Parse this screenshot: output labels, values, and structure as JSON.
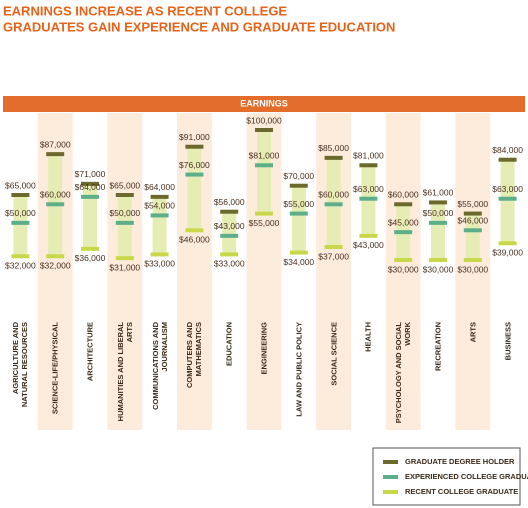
{
  "chart_data": {
    "type": "range",
    "title": [
      "EARNINGS INCREASE AS RECENT COLLEGE",
      "GRADUATES GAIN EXPERIENCE AND GRADUATE EDUCATION"
    ],
    "header": "EARNINGS",
    "categories": [
      "AGRICULTURE AND NATURAL RESOURCES",
      "SCIENCE-LIFE/PHYSICAL",
      "ARCHITECTURE",
      "HUMANITIES AND LIBERAL ARTS",
      "COMMUNICATIONS AND JOURNALISM",
      "COMPUTERS AND MATHEMATICS",
      "EDUCATION",
      "ENGINEERING",
      "LAW AND PUBLIC POLICY",
      "SOCIAL SCIENCE",
      "HEALTH",
      "PSYCHOLOGY AND SOCIAL WORK",
      "RECREATION",
      "ARTS",
      "BUSINESS"
    ],
    "series": [
      {
        "name": "GRADUATE DEGREE HOLDER",
        "color": "#6b6a2c",
        "values": [
          65000,
          87000,
          71000,
          65000,
          64000,
          91000,
          56000,
          100000,
          70000,
          85000,
          81000,
          60000,
          61000,
          55000,
          84000
        ],
        "value_labels": [
          "$65,000",
          "$87,000",
          "$71,000",
          "$65,000",
          "$64,000",
          "$91,000",
          "$56,000",
          "$100,000",
          "$70,000",
          "$85,000",
          "$81,000",
          "$60,000",
          "$61,000",
          "$55,000",
          "$84,000"
        ]
      },
      {
        "name": "EXPERIENCED COLLEGE GRADUATE",
        "color": "#5dae8b",
        "values": [
          50000,
          60000,
          64000,
          50000,
          54000,
          76000,
          43000,
          81000,
          55000,
          60000,
          63000,
          45000,
          50000,
          46000,
          63000
        ],
        "value_labels": [
          "$50,000",
          "$60,000",
          "$64,000",
          "$50,000",
          "$54,000",
          "$76,000",
          "$43,000",
          "$81,000",
          "$55,000",
          "$60,000",
          "$63,000",
          "$45,000",
          "$50,000",
          "$46,000",
          "$63,000"
        ]
      },
      {
        "name": "RECENT COLLEGE GRADUATE",
        "color": "#c9d84a",
        "values": [
          32000,
          32000,
          36000,
          31000,
          33000,
          46000,
          33000,
          55000,
          34000,
          37000,
          43000,
          30000,
          30000,
          30000,
          39000
        ],
        "value_labels": [
          "$32,000",
          "$32,000",
          "$36,000",
          "$31,000",
          "$33,000",
          "$46,000",
          "$33,000",
          "$55,000",
          "$34,000",
          "$37,000",
          "$43,000",
          "$30,000",
          "$30,000",
          "$30,000",
          "$39,000"
        ]
      }
    ],
    "range_color": "#e6edb4",
    "ylim": [
      30000,
      100000
    ]
  }
}
